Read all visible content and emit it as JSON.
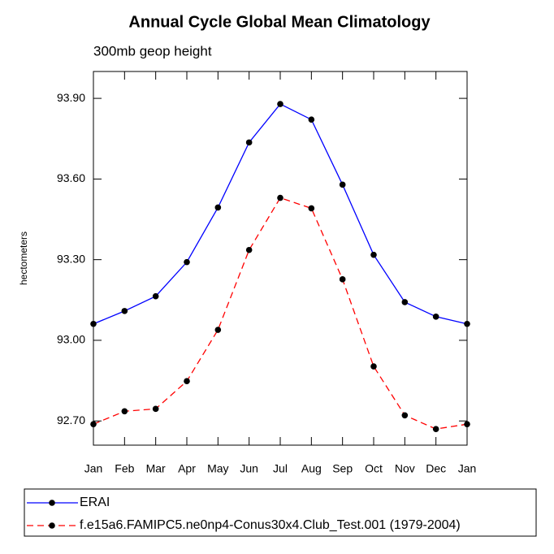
{
  "chart_data": {
    "type": "line",
    "title": "Annual Cycle Global Mean Climatology",
    "subtitle": "300mb geop height",
    "ylabel": "hectometers",
    "categories": [
      "Jan",
      "Feb",
      "Mar",
      "Apr",
      "May",
      "Jun",
      "Jul",
      "Aug",
      "Sep",
      "Oct",
      "Nov",
      "Dec",
      "Jan"
    ],
    "series": [
      {
        "name": "ERAI",
        "color": "#0000ff",
        "dashed": false,
        "values": [
          93.061,
          93.109,
          93.164,
          93.291,
          93.494,
          93.736,
          93.879,
          93.821,
          93.579,
          93.318,
          93.142,
          93.088,
          93.061
        ]
      },
      {
        "name": "f.e15a6.FAMIPC5.ne0np4-Conus30x4.Club_Test.001 (1979-2004)",
        "color": "#ff0000",
        "dashed": true,
        "values": [
          92.688,
          92.736,
          92.745,
          92.848,
          93.039,
          93.336,
          93.53,
          93.491,
          93.227,
          92.903,
          92.721,
          92.67,
          92.688
        ]
      }
    ],
    "ylim": [
      92.61,
      94.0
    ],
    "yticks": [
      {
        "value": 92.7,
        "label": "92.70"
      },
      {
        "value": 93.0,
        "label": "93.00"
      },
      {
        "value": 93.3,
        "label": "93.30"
      },
      {
        "value": 93.6,
        "label": "93.60"
      },
      {
        "value": 93.9,
        "label": "93.90"
      }
    ]
  }
}
